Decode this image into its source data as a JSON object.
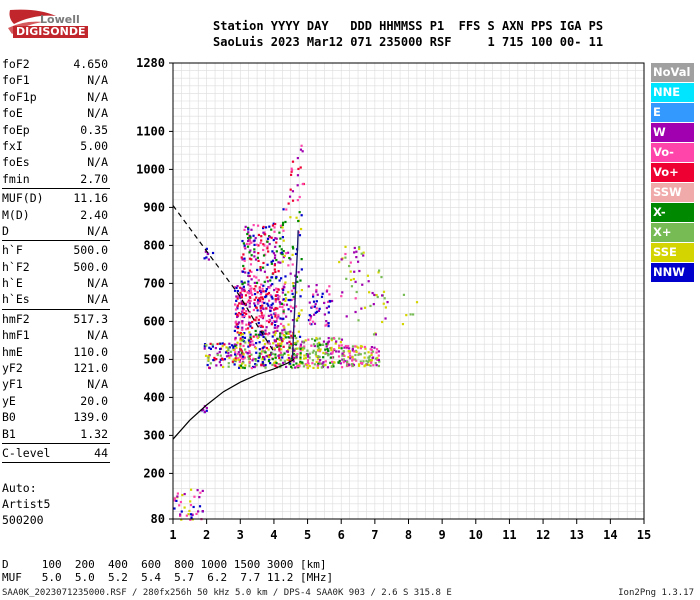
{
  "logo": {
    "line1": "Lowell",
    "line2": "DIGISONDE"
  },
  "header": {
    "line1": "Station YYYY DAY   DDD HHMMSS P1  FFS S AXN PPS IGA PS",
    "line2": "SaoLuis 2023 Mar12 071 235000 RSF     1 715 100 00- 11"
  },
  "params": {
    "group1": [
      {
        "name": "foF2",
        "value": "4.650"
      },
      {
        "name": "foF1",
        "value": "N/A"
      },
      {
        "name": "foF1p",
        "value": "N/A"
      },
      {
        "name": "foE",
        "value": "N/A"
      },
      {
        "name": "foEp",
        "value": "0.35"
      },
      {
        "name": "fxI",
        "value": "5.00"
      },
      {
        "name": "foEs",
        "value": "N/A"
      },
      {
        "name": "fmin",
        "value": "2.70"
      }
    ],
    "group2": [
      {
        "name": "MUF(D)",
        "value": "11.16"
      },
      {
        "name": "M(D)",
        "value": "2.40"
      },
      {
        "name": "D",
        "value": "N/A"
      }
    ],
    "group3": [
      {
        "name": "h`F",
        "value": "500.0"
      },
      {
        "name": "h`F2",
        "value": "500.0"
      },
      {
        "name": "h`E",
        "value": "N/A"
      },
      {
        "name": "h`Es",
        "value": "N/A"
      }
    ],
    "group4": [
      {
        "name": "hmF2",
        "value": "517.3"
      },
      {
        "name": "hmF1",
        "value": "N/A"
      },
      {
        "name": "hmE",
        "value": "110.0"
      },
      {
        "name": "yF2",
        "value": "121.0"
      },
      {
        "name": "yF1",
        "value": "N/A"
      },
      {
        "name": "yE",
        "value": "20.0"
      },
      {
        "name": "B0",
        "value": "139.0"
      },
      {
        "name": "B1",
        "value": "1.32"
      }
    ],
    "group5": [
      {
        "name": "C-level",
        "value": "44"
      }
    ]
  },
  "autoscaling": {
    "line1": "Auto:",
    "line2": "Artist5",
    "line3": "500200"
  },
  "legend": [
    {
      "label": "NoVal",
      "color": "#a0a0a0"
    },
    {
      "label": "NNE",
      "color": "#00e5ff"
    },
    {
      "label": "E",
      "color": "#3399ff"
    },
    {
      "label": "W",
      "color": "#a000b0"
    },
    {
      "label": "Vo-",
      "color": "#ff44aa"
    },
    {
      "label": "Vo+",
      "color": "#ee0033"
    },
    {
      "label": "SSW",
      "color": "#f0aaaa"
    },
    {
      "label": "X-",
      "color": "#008800"
    },
    {
      "label": "X+",
      "color": "#77bb55"
    },
    {
      "label": "SSE",
      "color": "#d4d400"
    },
    {
      "label": "NNW",
      "color": "#0000cc"
    }
  ],
  "muf_table": {
    "line1": "D     100  200  400  600  800 1000 1500 3000 [km]",
    "line2": "MUF   5.0  5.0  5.2  5.4  5.7  6.2  7.7 11.2 [MHz]"
  },
  "footer": "SAA0K_2023071235000.RSF / 280fx256h 50 kHz 5.0 km / DPS-4 SAA0K 903 / 2.6 S 315.8 E",
  "version": "Ion2Png 1.3.17",
  "chart_data": {
    "type": "scatter",
    "xlim": [
      1,
      15
    ],
    "ylim": [
      80,
      1280
    ],
    "x_ticks": [
      1,
      2,
      3,
      4,
      5,
      6,
      7,
      8,
      9,
      10,
      11,
      12,
      13,
      14,
      15
    ],
    "y_tick_labels": [
      {
        "value": 1280,
        "label": "1280"
      },
      {
        "value": 1100,
        "label": "1100"
      },
      {
        "value": 1000,
        "label": "1000"
      },
      {
        "value": 900,
        "label": "900"
      },
      {
        "value": 800,
        "label": "800"
      },
      {
        "value": 700,
        "label": "700"
      },
      {
        "value": 600,
        "label": "600"
      },
      {
        "value": 500,
        "label": "500"
      },
      {
        "value": 400,
        "label": "400"
      },
      {
        "value": 300,
        "label": "300"
      },
      {
        "value": 200,
        "label": "200"
      },
      {
        "value": 80,
        "label": "80"
      }
    ],
    "grid": true,
    "curves": {
      "profile_solid": [
        [
          1.0,
          290
        ],
        [
          1.5,
          340
        ],
        [
          2.0,
          380
        ],
        [
          2.5,
          415
        ],
        [
          3.0,
          440
        ],
        [
          3.5,
          460
        ],
        [
          4.0,
          475
        ],
        [
          4.4,
          490
        ],
        [
          4.6,
          500
        ]
      ],
      "profile_dashed": [
        [
          1.0,
          905
        ],
        [
          1.5,
          845
        ],
        [
          2.0,
          785
        ],
        [
          2.5,
          725
        ],
        [
          3.0,
          665
        ],
        [
          3.5,
          590
        ],
        [
          4.0,
          520
        ]
      ],
      "trace_x": [
        [
          4.55,
          500
        ],
        [
          4.58,
          560
        ],
        [
          4.62,
          640
        ],
        [
          4.66,
          720
        ],
        [
          4.7,
          790
        ],
        [
          4.72,
          840
        ]
      ]
    },
    "clusters": [
      {
        "x": [
          2.8,
          4.6
        ],
        "y": [
          480,
          580
        ],
        "n": 320,
        "colors": [
          "W",
          "SSE",
          "X+",
          "Vo-",
          "NNW",
          "X-",
          "Vo+"
        ]
      },
      {
        "x": [
          4.6,
          6.0
        ],
        "y": [
          480,
          560
        ],
        "n": 180,
        "colors": [
          "SSE",
          "X+",
          "W",
          "X-",
          "Vo-"
        ]
      },
      {
        "x": [
          6.0,
          7.1
        ],
        "y": [
          485,
          540
        ],
        "n": 110,
        "colors": [
          "SSE",
          "X+",
          "W",
          "Vo-"
        ]
      },
      {
        "x": [
          1.9,
          2.8
        ],
        "y": [
          480,
          545
        ],
        "n": 70,
        "colors": [
          "W",
          "SSE",
          "NNW",
          "X+",
          "Vo+"
        ]
      },
      {
        "x": [
          2.8,
          4.3
        ],
        "y": [
          580,
          700
        ],
        "n": 260,
        "colors": [
          "W",
          "Vo-",
          "Vo+",
          "NNW"
        ]
      },
      {
        "x": [
          3.0,
          4.2
        ],
        "y": [
          700,
          860
        ],
        "n": 160,
        "colors": [
          "W",
          "Vo-",
          "Vo+",
          "NNW",
          "X-"
        ]
      },
      {
        "x": [
          4.2,
          4.8
        ],
        "y": [
          560,
          900
        ],
        "n": 90,
        "colors": [
          "W",
          "Vo-",
          "NNW",
          "X-",
          "SSE"
        ]
      },
      {
        "x": [
          4.4,
          4.9
        ],
        "y": [
          900,
          1070
        ],
        "n": 22,
        "colors": [
          "W",
          "Vo-",
          "Vo+"
        ]
      },
      {
        "x": [
          5.0,
          5.7
        ],
        "y": [
          590,
          700
        ],
        "n": 50,
        "colors": [
          "W",
          "Vo-",
          "NNW"
        ]
      },
      {
        "x": [
          5.9,
          6.9
        ],
        "y": [
          600,
          800
        ],
        "n": 40,
        "colors": [
          "W",
          "Vo-",
          "SSE",
          "X+"
        ]
      },
      {
        "x": [
          6.9,
          7.4
        ],
        "y": [
          560,
          760
        ],
        "n": 20,
        "colors": [
          "SSE",
          "W",
          "X+"
        ]
      },
      {
        "x": [
          1.8,
          2.0
        ],
        "y": [
          360,
          380
        ],
        "n": 8,
        "colors": [
          "NNW",
          "W"
        ]
      },
      {
        "x": [
          1.0,
          1.9
        ],
        "y": [
          80,
          160
        ],
        "n": 40,
        "colors": [
          "NNW",
          "W",
          "Vo-",
          "SSE"
        ]
      },
      {
        "x": [
          1.9,
          2.2
        ],
        "y": [
          760,
          800
        ],
        "n": 8,
        "colors": [
          "W",
          "NNW"
        ]
      },
      {
        "x": [
          7.8,
          8.3
        ],
        "y": [
          590,
          680
        ],
        "n": 6,
        "colors": [
          "SSE",
          "X+"
        ]
      }
    ]
  }
}
